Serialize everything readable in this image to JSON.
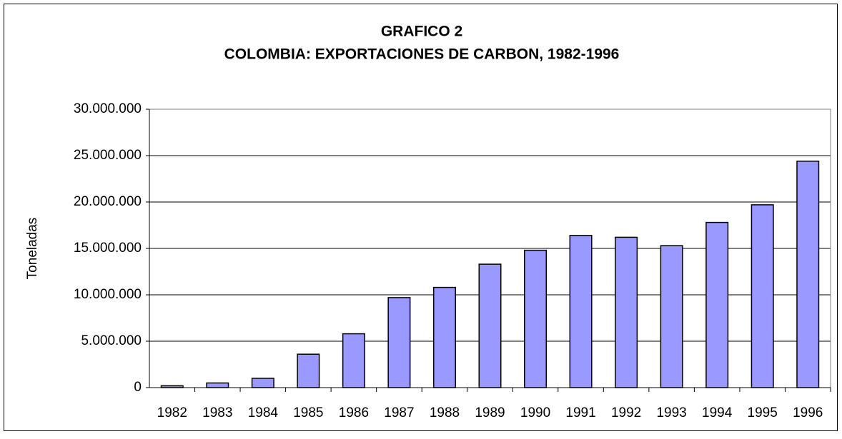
{
  "chart_data": {
    "type": "bar",
    "title": "GRAFICO 2",
    "subtitle": "COLOMBIA: EXPORTACIONES DE CARBON, 1982-1996",
    "y_label": "Toneladas",
    "categories": [
      "1982",
      "1983",
      "1984",
      "1985",
      "1986",
      "1987",
      "1988",
      "1989",
      "1990",
      "1991",
      "1992",
      "1993",
      "1994",
      "1995",
      "1996"
    ],
    "values": [
      200000,
      500000,
      1000000,
      3600000,
      5800000,
      9700000,
      10800000,
      13300000,
      14800000,
      16400000,
      16200000,
      15300000,
      17800000,
      19700000,
      24400000
    ],
    "color": "#9999ff",
    "ylim": [
      0,
      30000000
    ],
    "yticks": [
      0,
      {
        "value": 5000000,
        "label": "5.000.000"
      },
      {
        "value": 10000000,
        "label": "10.000.000"
      },
      {
        "value": 15000000,
        "label": "15.000.000"
      },
      {
        "value": 20000000,
        "label": "20.000.000"
      },
      {
        "value": 25000000,
        "label": "25.000.000"
      },
      {
        "value": 30000000,
        "label": "30.000.000"
      }
    ],
    "grid": true
  }
}
